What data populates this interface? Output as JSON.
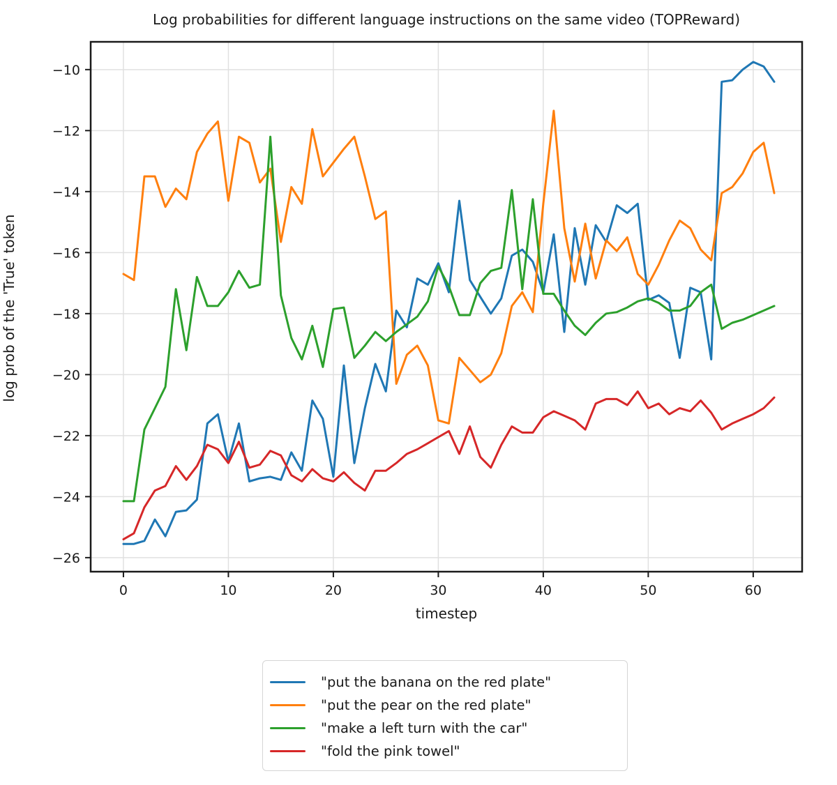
{
  "figure": {
    "title": "Log probabilities for different language instructions on the same video (TOPReward)",
    "xlabel": "timestep",
    "ylabel": "log prob of the 'True' token"
  },
  "chart_data": {
    "type": "line",
    "title": "Log probabilities for different language instructions on the same video (TOPReward)",
    "xlabel": "timestep",
    "ylabel": "log prob of the 'True' token",
    "grid": true,
    "legend_position": "bottom-center",
    "xlim": [
      -3.12,
      64.66
    ],
    "ylim": [
      -26.46,
      -9.09
    ],
    "xticks": {
      "values": [
        0,
        10,
        20,
        30,
        40,
        50,
        60
      ],
      "labels": [
        "0",
        "10",
        "20",
        "30",
        "40",
        "50",
        "60"
      ]
    },
    "yticks": {
      "values": [
        -10,
        -12,
        -14,
        -16,
        -18,
        -20,
        -22,
        -24,
        -26
      ],
      "labels": [
        "−10",
        "−12",
        "−14",
        "−16",
        "−18",
        "−20",
        "−22",
        "−24",
        "−26"
      ]
    },
    "x": [
      0,
      1,
      2,
      3,
      4,
      5,
      6,
      7,
      8,
      9,
      10,
      11,
      12,
      13,
      14,
      15,
      16,
      17,
      18,
      19,
      20,
      21,
      22,
      23,
      24,
      25,
      26,
      27,
      28,
      29,
      30,
      31,
      32,
      33,
      34,
      35,
      36,
      37,
      38,
      39,
      40,
      41,
      42,
      43,
      44,
      45,
      46,
      47,
      48,
      49,
      50,
      51,
      52,
      53,
      54,
      55,
      56,
      57,
      58,
      59,
      60,
      61,
      62
    ],
    "series": [
      {
        "label": "\"put the banana on the red plate\"",
        "color": "#1f77b4",
        "values": [
          -25.55,
          -25.55,
          -25.45,
          -24.75,
          -25.3,
          -24.5,
          -24.45,
          -24.1,
          -21.6,
          -21.3,
          -22.85,
          -21.6,
          -23.5,
          -23.4,
          -23.35,
          -23.45,
          -22.55,
          -23.15,
          -20.85,
          -21.45,
          -23.35,
          -19.7,
          -22.9,
          -21.1,
          -19.65,
          -20.55,
          -17.9,
          -18.45,
          -16.85,
          -17.05,
          -16.35,
          -17.3,
          -14.3,
          -16.9,
          -17.45,
          -18.0,
          -17.5,
          -16.1,
          -15.9,
          -16.3,
          -17.3,
          -15.4,
          -18.6,
          -15.2,
          -17.05,
          -15.1,
          -15.65,
          -14.45,
          -14.7,
          -14.4,
          -17.55,
          -17.4,
          -17.65,
          -19.45,
          -17.15,
          -17.3,
          -19.5,
          -10.4,
          -10.35,
          -10.0,
          -9.75,
          -9.9,
          -10.4
        ]
      },
      {
        "label": "\"put the pear on the red plate\"",
        "color": "#ff7f0e",
        "values": [
          -16.7,
          -16.9,
          -13.5,
          -13.5,
          -14.5,
          -13.9,
          -14.25,
          -12.7,
          -12.1,
          -11.7,
          -14.3,
          -12.2,
          -12.4,
          -13.7,
          -13.25,
          -15.65,
          -13.85,
          -14.4,
          -11.95,
          -13.5,
          -13.05,
          -12.6,
          -12.2,
          -13.5,
          -14.9,
          -14.65,
          -20.3,
          -19.35,
          -19.05,
          -19.7,
          -21.5,
          -21.6,
          -19.45,
          -19.85,
          -20.25,
          -20.0,
          -19.3,
          -17.75,
          -17.3,
          -17.95,
          -14.4,
          -11.35,
          -15.2,
          -16.95,
          -15.05,
          -16.85,
          -15.6,
          -15.95,
          -15.5,
          -16.7,
          -17.05,
          -16.4,
          -15.6,
          -14.95,
          -15.2,
          -15.9,
          -16.25,
          -14.05,
          -13.85,
          -13.4,
          -12.7,
          -12.4,
          -14.05
        ]
      },
      {
        "label": "\"make a left turn with the car\"",
        "color": "#2ca02c",
        "values": [
          -24.15,
          -24.15,
          -21.8,
          -21.1,
          -20.4,
          -17.2,
          -19.2,
          -16.8,
          -17.75,
          -17.75,
          -17.3,
          -16.6,
          -17.15,
          -17.05,
          -12.2,
          -17.4,
          -18.8,
          -19.5,
          -18.4,
          -19.75,
          -17.85,
          -17.8,
          -19.45,
          -19.05,
          -18.6,
          -18.9,
          -18.6,
          -18.35,
          -18.1,
          -17.6,
          -16.45,
          -17.1,
          -18.05,
          -18.05,
          -17.0,
          -16.6,
          -16.5,
          -13.95,
          -17.2,
          -14.25,
          -17.35,
          -17.35,
          -17.9,
          -18.4,
          -18.7,
          -18.3,
          -18.0,
          -17.95,
          -17.8,
          -17.6,
          -17.5,
          -17.65,
          -17.9,
          -17.9,
          -17.75,
          -17.3,
          -17.05,
          -18.5,
          -18.3,
          -18.2,
          -18.05,
          -17.9,
          -17.75
        ]
      },
      {
        "label": "\"fold the pink towel\"",
        "color": "#d62728",
        "values": [
          -25.4,
          -25.2,
          -24.35,
          -23.8,
          -23.65,
          -23.0,
          -23.45,
          -23.0,
          -22.3,
          -22.45,
          -22.9,
          -22.2,
          -23.05,
          -22.95,
          -22.5,
          -22.65,
          -23.3,
          -23.5,
          -23.1,
          -23.4,
          -23.5,
          -23.2,
          -23.55,
          -23.8,
          -23.15,
          -23.15,
          -22.9,
          -22.6,
          -22.45,
          -22.25,
          -22.05,
          -21.85,
          -22.6,
          -21.7,
          -22.7,
          -23.05,
          -22.3,
          -21.7,
          -21.9,
          -21.9,
          -21.4,
          -21.2,
          -21.35,
          -21.5,
          -21.8,
          -20.95,
          -20.8,
          -20.8,
          -21.0,
          -20.55,
          -21.1,
          -20.95,
          -21.3,
          -21.1,
          -21.2,
          -20.85,
          -21.25,
          -21.8,
          -21.6,
          -21.45,
          -21.3,
          -21.1,
          -20.75
        ]
      }
    ],
    "style": {
      "grid_color": "#e0e0e0",
      "spine_color": "#1a1a1a",
      "line_width": 3
    }
  }
}
